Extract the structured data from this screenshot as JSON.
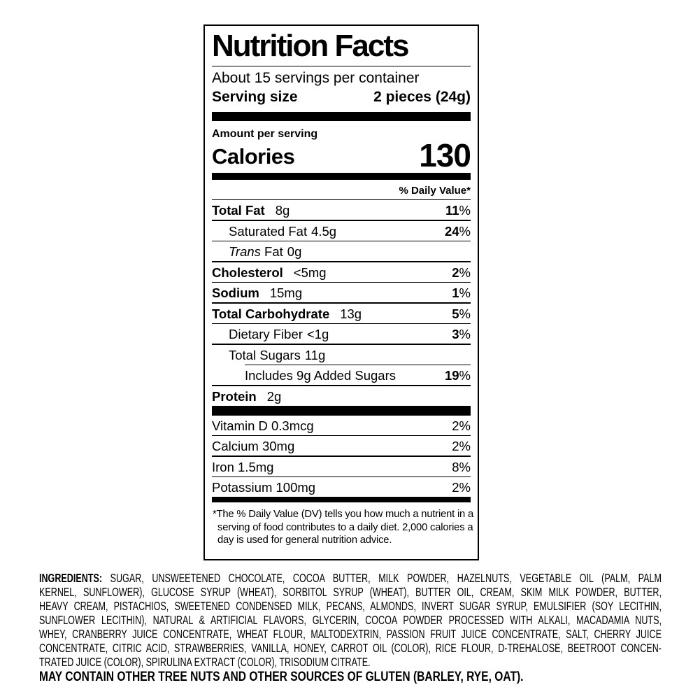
{
  "colors": {
    "text": "#000000",
    "background": "#ffffff",
    "rule": "#000000"
  },
  "label": {
    "title": "Nutrition Facts",
    "servings_per_container": "About 15 servings per container",
    "serving_size_label": "Serving size",
    "serving_size_value": "2 pieces (24g)",
    "amount_per_serving": "Amount per serving",
    "calories_label": "Calories",
    "calories_value": "130",
    "daily_value_header": "% Daily Value*",
    "nutrients": [
      {
        "name": "Total Fat",
        "amount": "8g",
        "dv": "11%",
        "bold": true,
        "indent": 0
      },
      {
        "name": "Saturated Fat",
        "amount": "4.5g",
        "dv": "24%",
        "bold": false,
        "indent": 1
      },
      {
        "name": "Fat",
        "italic_prefix": "Trans",
        "amount": "0g",
        "dv": "",
        "bold": false,
        "indent": 1
      },
      {
        "name": "Cholesterol",
        "amount": "<5mg",
        "dv": "2%",
        "bold": true,
        "indent": 0
      },
      {
        "name": "Sodium",
        "amount": "15mg",
        "dv": "1%",
        "bold": true,
        "indent": 0
      },
      {
        "name": "Total Carbohydrate",
        "amount": "13g",
        "dv": "5%",
        "bold": true,
        "indent": 0
      },
      {
        "name": "Dietary Fiber",
        "amount": "<1g",
        "dv": "3%",
        "bold": false,
        "indent": 1
      },
      {
        "name": "Total Sugars",
        "amount": "11g",
        "dv": "",
        "bold": false,
        "indent": 1,
        "rule_after_indented": true
      },
      {
        "name": "Includes 9g Added Sugars",
        "amount": "",
        "dv": "19%",
        "bold": false,
        "indent": 2
      },
      {
        "name": "Protein",
        "amount": "2g",
        "dv": "",
        "bold": true,
        "indent": 0
      }
    ],
    "micronutrients": [
      {
        "name": "Vitamin D 0.3mcg",
        "dv": "2%"
      },
      {
        "name": "Calcium 30mg",
        "dv": "2%"
      },
      {
        "name": "Iron 1.5mg",
        "dv": "8%"
      },
      {
        "name": "Potassium 100mg",
        "dv": "2%"
      }
    ],
    "footnote_lines": [
      "*The % Daily Value (DV) tells you how much a nutrient in a",
      "serving of food contributes to a daily diet. 2,000 calories a",
      "day is used for general nutrition advice."
    ]
  },
  "ingredients": {
    "heading": "INGREDIENTS:",
    "lines": [
      "SUGAR, UNSWEETENED CHOCOLATE, COCOA BUTTER, MILK POWDER, HAZELNUTS, VEGETABLE OIL (PALM, PALM",
      "KERNEL, SUNFLOWER), GLUCOSE SYRUP (WHEAT), SORBITOL SYRUP (WHEAT), BUTTER OIL, CREAM, SKIM MILK POWDER, BUTTER,",
      "HEAVY CREAM, PISTACHIOS, SWEETENED CONDENSED MILK, PECANS, ALMONDS, INVERT SUGAR SYRUP, EMULSIFIER (SOY LECITHIN,",
      "SUNFLOWER LECITHIN), NATURAL & ARTIFICIAL FLAVORS, GLYCERIN, COCOA POWDER PROCESSED WITH ALKALI, MACADAMIA NUTS,",
      "WHEY, CRANBERRY JUICE CONCENTRATE, WHEAT FLOUR, MALTODEXTRIN, PASSION FRUIT JUICE CONCENTRATE, SALT, CHERRY JUICE",
      "CONCENTRATE, CITRIC ACID, STRAWBERRIES, VANILLA, HONEY, CARROT OIL (COLOR), RICE FLOUR, D-TREHALOSE, BEETROOT CONCEN-",
      "TRATED JUICE (COLOR), SPIRULINA EXTRACT (COLOR), TRISODIUM CITRATE."
    ],
    "may_contain": "MAY CONTAIN OTHER TREE NUTS AND OTHER SOURCES OF GLUTEN (BARLEY, RYE, OAT)."
  }
}
